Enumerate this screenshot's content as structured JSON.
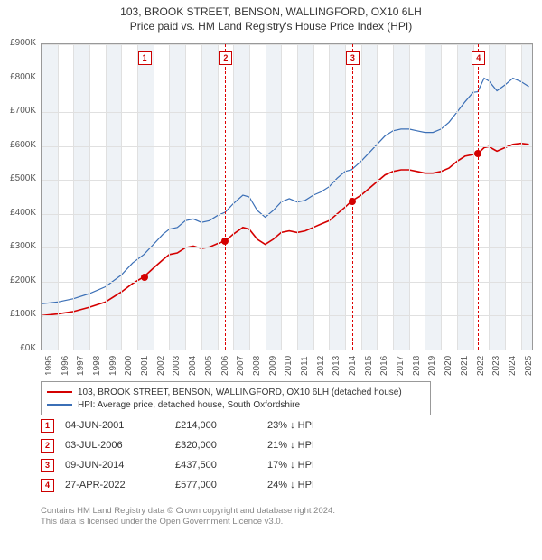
{
  "title": "103, BROOK STREET, BENSON, WALLINGFORD, OX10 6LH",
  "subtitle": "Price paid vs. HM Land Registry's House Price Index (HPI)",
  "chart": {
    "type": "line",
    "xlim": [
      1995,
      2025.7
    ],
    "ylim": [
      0,
      900000
    ],
    "ytick_step": 100000,
    "ytick_labels": [
      "£0K",
      "£100K",
      "£200K",
      "£300K",
      "£400K",
      "£500K",
      "£600K",
      "£700K",
      "£800K",
      "£900K"
    ],
    "xticks": [
      1995,
      1996,
      1997,
      1998,
      1999,
      2000,
      2001,
      2002,
      2003,
      2004,
      2005,
      2006,
      2007,
      2008,
      2009,
      2010,
      2011,
      2012,
      2013,
      2014,
      2015,
      2016,
      2017,
      2018,
      2019,
      2020,
      2021,
      2022,
      2023,
      2024,
      2025
    ],
    "band_years": [
      1995,
      1997,
      1999,
      2001,
      2003,
      2005,
      2007,
      2009,
      2011,
      2013,
      2015,
      2017,
      2019,
      2021,
      2023,
      2025
    ],
    "grid_color": "#e0e0e0",
    "background_color": "#ffffff",
    "band_color": "#eef2f6",
    "series": [
      {
        "name": "property",
        "label": "103, BROOK STREET, BENSON, WALLINGFORD, OX10 6LH (detached house)",
        "color": "#d40000",
        "width": 1.6,
        "points": [
          [
            1995.0,
            100000
          ],
          [
            1996.0,
            105000
          ],
          [
            1997.0,
            112000
          ],
          [
            1998.0,
            125000
          ],
          [
            1999.0,
            140000
          ],
          [
            2000.0,
            170000
          ],
          [
            2000.7,
            195000
          ],
          [
            2001.4,
            214000
          ],
          [
            2002.0,
            240000
          ],
          [
            2002.6,
            265000
          ],
          [
            2003.0,
            280000
          ],
          [
            2003.5,
            285000
          ],
          [
            2004.0,
            300000
          ],
          [
            2004.5,
            305000
          ],
          [
            2005.0,
            298000
          ],
          [
            2005.5,
            302000
          ],
          [
            2006.0,
            312000
          ],
          [
            2006.5,
            320000
          ],
          [
            2007.0,
            340000
          ],
          [
            2007.6,
            360000
          ],
          [
            2008.0,
            355000
          ],
          [
            2008.5,
            325000
          ],
          [
            2009.0,
            310000
          ],
          [
            2009.5,
            325000
          ],
          [
            2010.0,
            345000
          ],
          [
            2010.5,
            350000
          ],
          [
            2011.0,
            345000
          ],
          [
            2011.5,
            350000
          ],
          [
            2012.0,
            360000
          ],
          [
            2012.5,
            370000
          ],
          [
            2013.0,
            380000
          ],
          [
            2013.5,
            400000
          ],
          [
            2014.0,
            420000
          ],
          [
            2014.4,
            437500
          ],
          [
            2015.0,
            455000
          ],
          [
            2015.5,
            475000
          ],
          [
            2016.0,
            495000
          ],
          [
            2016.5,
            515000
          ],
          [
            2017.0,
            525000
          ],
          [
            2017.5,
            530000
          ],
          [
            2018.0,
            530000
          ],
          [
            2018.5,
            525000
          ],
          [
            2019.0,
            520000
          ],
          [
            2019.5,
            520000
          ],
          [
            2020.0,
            525000
          ],
          [
            2020.5,
            535000
          ],
          [
            2021.0,
            555000
          ],
          [
            2021.5,
            570000
          ],
          [
            2022.0,
            575000
          ],
          [
            2022.3,
            577000
          ],
          [
            2022.7,
            595000
          ],
          [
            2023.0,
            598000
          ],
          [
            2023.5,
            585000
          ],
          [
            2024.0,
            595000
          ],
          [
            2024.5,
            605000
          ],
          [
            2025.0,
            608000
          ],
          [
            2025.5,
            605000
          ]
        ]
      },
      {
        "name": "hpi",
        "label": "HPI: Average price, detached house, South Oxfordshire",
        "color": "#3b6fb6",
        "width": 1.2,
        "points": [
          [
            1995.0,
            135000
          ],
          [
            1996.0,
            140000
          ],
          [
            1997.0,
            150000
          ],
          [
            1998.0,
            165000
          ],
          [
            1999.0,
            185000
          ],
          [
            2000.0,
            220000
          ],
          [
            2000.7,
            255000
          ],
          [
            2001.4,
            280000
          ],
          [
            2002.0,
            310000
          ],
          [
            2002.6,
            340000
          ],
          [
            2003.0,
            355000
          ],
          [
            2003.5,
            360000
          ],
          [
            2004.0,
            380000
          ],
          [
            2004.5,
            385000
          ],
          [
            2005.0,
            375000
          ],
          [
            2005.5,
            380000
          ],
          [
            2006.0,
            395000
          ],
          [
            2006.5,
            405000
          ],
          [
            2007.0,
            430000
          ],
          [
            2007.6,
            455000
          ],
          [
            2008.0,
            450000
          ],
          [
            2008.5,
            410000
          ],
          [
            2009.0,
            390000
          ],
          [
            2009.5,
            410000
          ],
          [
            2010.0,
            435000
          ],
          [
            2010.5,
            445000
          ],
          [
            2011.0,
            435000
          ],
          [
            2011.5,
            440000
          ],
          [
            2012.0,
            455000
          ],
          [
            2012.5,
            465000
          ],
          [
            2013.0,
            480000
          ],
          [
            2013.5,
            505000
          ],
          [
            2014.0,
            525000
          ],
          [
            2014.4,
            530000
          ],
          [
            2015.0,
            555000
          ],
          [
            2015.5,
            580000
          ],
          [
            2016.0,
            605000
          ],
          [
            2016.5,
            630000
          ],
          [
            2017.0,
            645000
          ],
          [
            2017.5,
            650000
          ],
          [
            2018.0,
            650000
          ],
          [
            2018.5,
            645000
          ],
          [
            2019.0,
            640000
          ],
          [
            2019.5,
            640000
          ],
          [
            2020.0,
            650000
          ],
          [
            2020.5,
            670000
          ],
          [
            2021.0,
            700000
          ],
          [
            2021.5,
            730000
          ],
          [
            2022.0,
            758000
          ],
          [
            2022.3,
            760000
          ],
          [
            2022.7,
            800000
          ],
          [
            2023.0,
            792000
          ],
          [
            2023.5,
            763000
          ],
          [
            2024.0,
            780000
          ],
          [
            2024.5,
            800000
          ],
          [
            2025.0,
            790000
          ],
          [
            2025.5,
            775000
          ]
        ]
      }
    ],
    "markers": [
      {
        "n": "1",
        "year": 2001.42
      },
      {
        "n": "2",
        "year": 2006.5
      },
      {
        "n": "3",
        "year": 2014.44
      },
      {
        "n": "4",
        "year": 2022.32
      }
    ],
    "sales": [
      {
        "year": 2001.42,
        "price": 214000
      },
      {
        "year": 2006.5,
        "price": 320000
      },
      {
        "year": 2014.44,
        "price": 437500
      },
      {
        "year": 2022.32,
        "price": 577000
      }
    ]
  },
  "legend": {
    "items": [
      {
        "color": "#d40000",
        "text": "103, BROOK STREET, BENSON, WALLINGFORD, OX10 6LH (detached house)"
      },
      {
        "color": "#3b6fb6",
        "text": "HPI: Average price, detached house, South Oxfordshire"
      }
    ]
  },
  "transactions": [
    {
      "n": "1",
      "date": "04-JUN-2001",
      "price": "£214,000",
      "diff": "23% ↓ HPI"
    },
    {
      "n": "2",
      "date": "03-JUL-2006",
      "price": "£320,000",
      "diff": "21% ↓ HPI"
    },
    {
      "n": "3",
      "date": "09-JUN-2014",
      "price": "£437,500",
      "diff": "17% ↓ HPI"
    },
    {
      "n": "4",
      "date": "27-APR-2022",
      "price": "£577,000",
      "diff": "24% ↓ HPI"
    }
  ],
  "footnote": {
    "line1": "Contains HM Land Registry data © Crown copyright and database right 2024.",
    "line2": "This data is licensed under the Open Government Licence v3.0."
  }
}
